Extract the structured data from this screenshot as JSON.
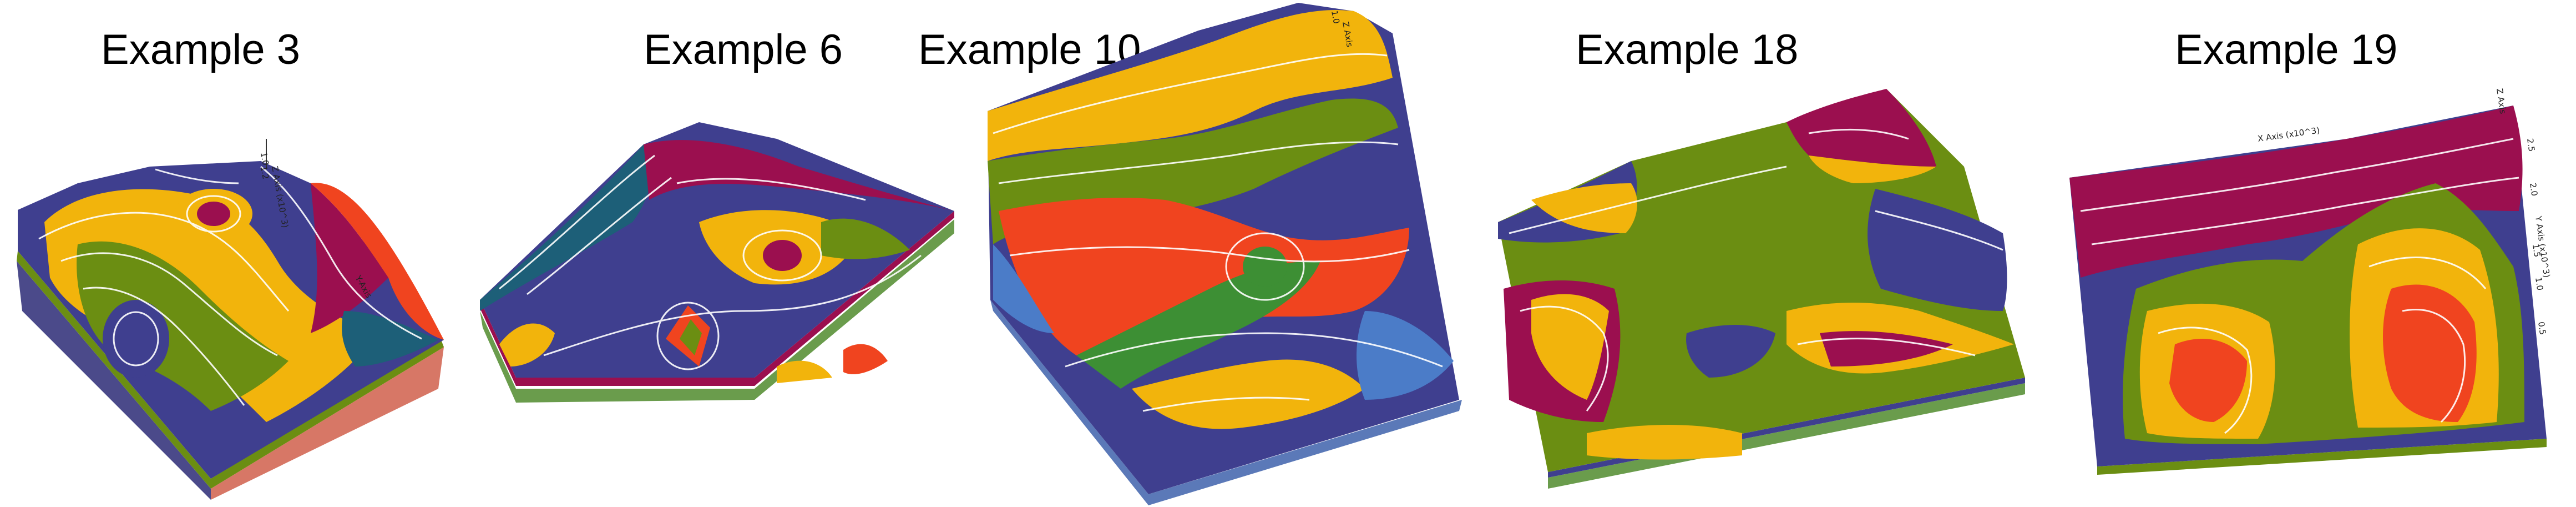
{
  "panels": [
    {
      "title": "Example 3",
      "axis_labels": [
        "Y-Axis",
        "Z Axis (x10^3)",
        "1.0",
        "1.2"
      ]
    },
    {
      "title": "Example 6",
      "axis_labels": []
    },
    {
      "title": "Example 10",
      "axis_labels": [
        "Z Axis",
        "1.0"
      ]
    },
    {
      "title": "Example 18",
      "axis_labels": []
    },
    {
      "title": "Example 19",
      "axis_labels": [
        "X Axis (x10^3)",
        "Y Axis (x10^3)",
        "2.5",
        "2.0",
        "1.5",
        "1.0",
        "0.5",
        "Z Axis"
      ]
    }
  ],
  "palette": {
    "purple": "#3f3f8f",
    "gold": "#f2b40c",
    "olive": "#6b8e12",
    "red": "#f0441f",
    "magenta": "#9b0f4f",
    "teal": "#1d5f78",
    "blue": "#4b7cc8",
    "base_red": "#d77766",
    "base_green": "#6a9c4c",
    "contour": "#ffffff"
  }
}
